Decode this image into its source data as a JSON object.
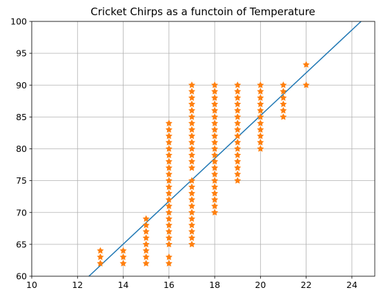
{
  "chart_data": {
    "type": "scatter",
    "title": "Cricket Chirps as a functoin of Temperature",
    "xlabel": "",
    "ylabel": "",
    "xlim": [
      10,
      25
    ],
    "ylim": [
      60,
      100
    ],
    "xticks": [
      10,
      12,
      14,
      16,
      18,
      20,
      22,
      24
    ],
    "yticks": [
      60,
      65,
      70,
      75,
      80,
      85,
      90,
      95,
      100
    ],
    "grid": true,
    "line": {
      "color": "#1f77b4",
      "points": [
        [
          12.5,
          60
        ],
        [
          24.4,
          100
        ]
      ]
    },
    "scatter": {
      "color": "#ff7f0e",
      "marker": "star",
      "points": [
        [
          13,
          62
        ],
        [
          13,
          63
        ],
        [
          13,
          64
        ],
        [
          14,
          62
        ],
        [
          14,
          63
        ],
        [
          14,
          64
        ],
        [
          15,
          62
        ],
        [
          15,
          63
        ],
        [
          15,
          64
        ],
        [
          15,
          65
        ],
        [
          15,
          66
        ],
        [
          15,
          67
        ],
        [
          15,
          68
        ],
        [
          15,
          69
        ],
        [
          16,
          62
        ],
        [
          16,
          63
        ],
        [
          16,
          65
        ],
        [
          16,
          66
        ],
        [
          16,
          67
        ],
        [
          16,
          68
        ],
        [
          16,
          69
        ],
        [
          16,
          70
        ],
        [
          16,
          71
        ],
        [
          16,
          72
        ],
        [
          16,
          73
        ],
        [
          16,
          74
        ],
        [
          16,
          75
        ],
        [
          16,
          76
        ],
        [
          16,
          77
        ],
        [
          16,
          78
        ],
        [
          16,
          79
        ],
        [
          16,
          80
        ],
        [
          16,
          81
        ],
        [
          16,
          82
        ],
        [
          16,
          83
        ],
        [
          16,
          84
        ],
        [
          17,
          65
        ],
        [
          17,
          66
        ],
        [
          17,
          67
        ],
        [
          17,
          68
        ],
        [
          17,
          69
        ],
        [
          17,
          70
        ],
        [
          17,
          71
        ],
        [
          17,
          72
        ],
        [
          17,
          73
        ],
        [
          17,
          74
        ],
        [
          17,
          75
        ],
        [
          17,
          77
        ],
        [
          17,
          78
        ],
        [
          17,
          79
        ],
        [
          17,
          80
        ],
        [
          17,
          81
        ],
        [
          17,
          82
        ],
        [
          17,
          83
        ],
        [
          17,
          84
        ],
        [
          17,
          85
        ],
        [
          17,
          86
        ],
        [
          17,
          87
        ],
        [
          17,
          88
        ],
        [
          17,
          89
        ],
        [
          17,
          90
        ],
        [
          18,
          70
        ],
        [
          18,
          71
        ],
        [
          18,
          72
        ],
        [
          18,
          73
        ],
        [
          18,
          74
        ],
        [
          18,
          75
        ],
        [
          18,
          76
        ],
        [
          18,
          77
        ],
        [
          18,
          78
        ],
        [
          18,
          79
        ],
        [
          18,
          80
        ],
        [
          18,
          81
        ],
        [
          18,
          82
        ],
        [
          18,
          83
        ],
        [
          18,
          84
        ],
        [
          18,
          85
        ],
        [
          18,
          86
        ],
        [
          18,
          87
        ],
        [
          18,
          88
        ],
        [
          18,
          89
        ],
        [
          18,
          90
        ],
        [
          19,
          75
        ],
        [
          19,
          76
        ],
        [
          19,
          77
        ],
        [
          19,
          78
        ],
        [
          19,
          79
        ],
        [
          19,
          80
        ],
        [
          19,
          81
        ],
        [
          19,
          82
        ],
        [
          19,
          83
        ],
        [
          19,
          84
        ],
        [
          19,
          85
        ],
        [
          19,
          86
        ],
        [
          19,
          87
        ],
        [
          19,
          88
        ],
        [
          19,
          89
        ],
        [
          19,
          90
        ],
        [
          20,
          80
        ],
        [
          20,
          81
        ],
        [
          20,
          82
        ],
        [
          20,
          83
        ],
        [
          20,
          84
        ],
        [
          20,
          85
        ],
        [
          20,
          86
        ],
        [
          20,
          87
        ],
        [
          20,
          88
        ],
        [
          20,
          89
        ],
        [
          20,
          90
        ],
        [
          21,
          85
        ],
        [
          21,
          86
        ],
        [
          21,
          87
        ],
        [
          21,
          88
        ],
        [
          21,
          89
        ],
        [
          21,
          90
        ],
        [
          22,
          90
        ],
        [
          22,
          93.2
        ]
      ]
    }
  }
}
